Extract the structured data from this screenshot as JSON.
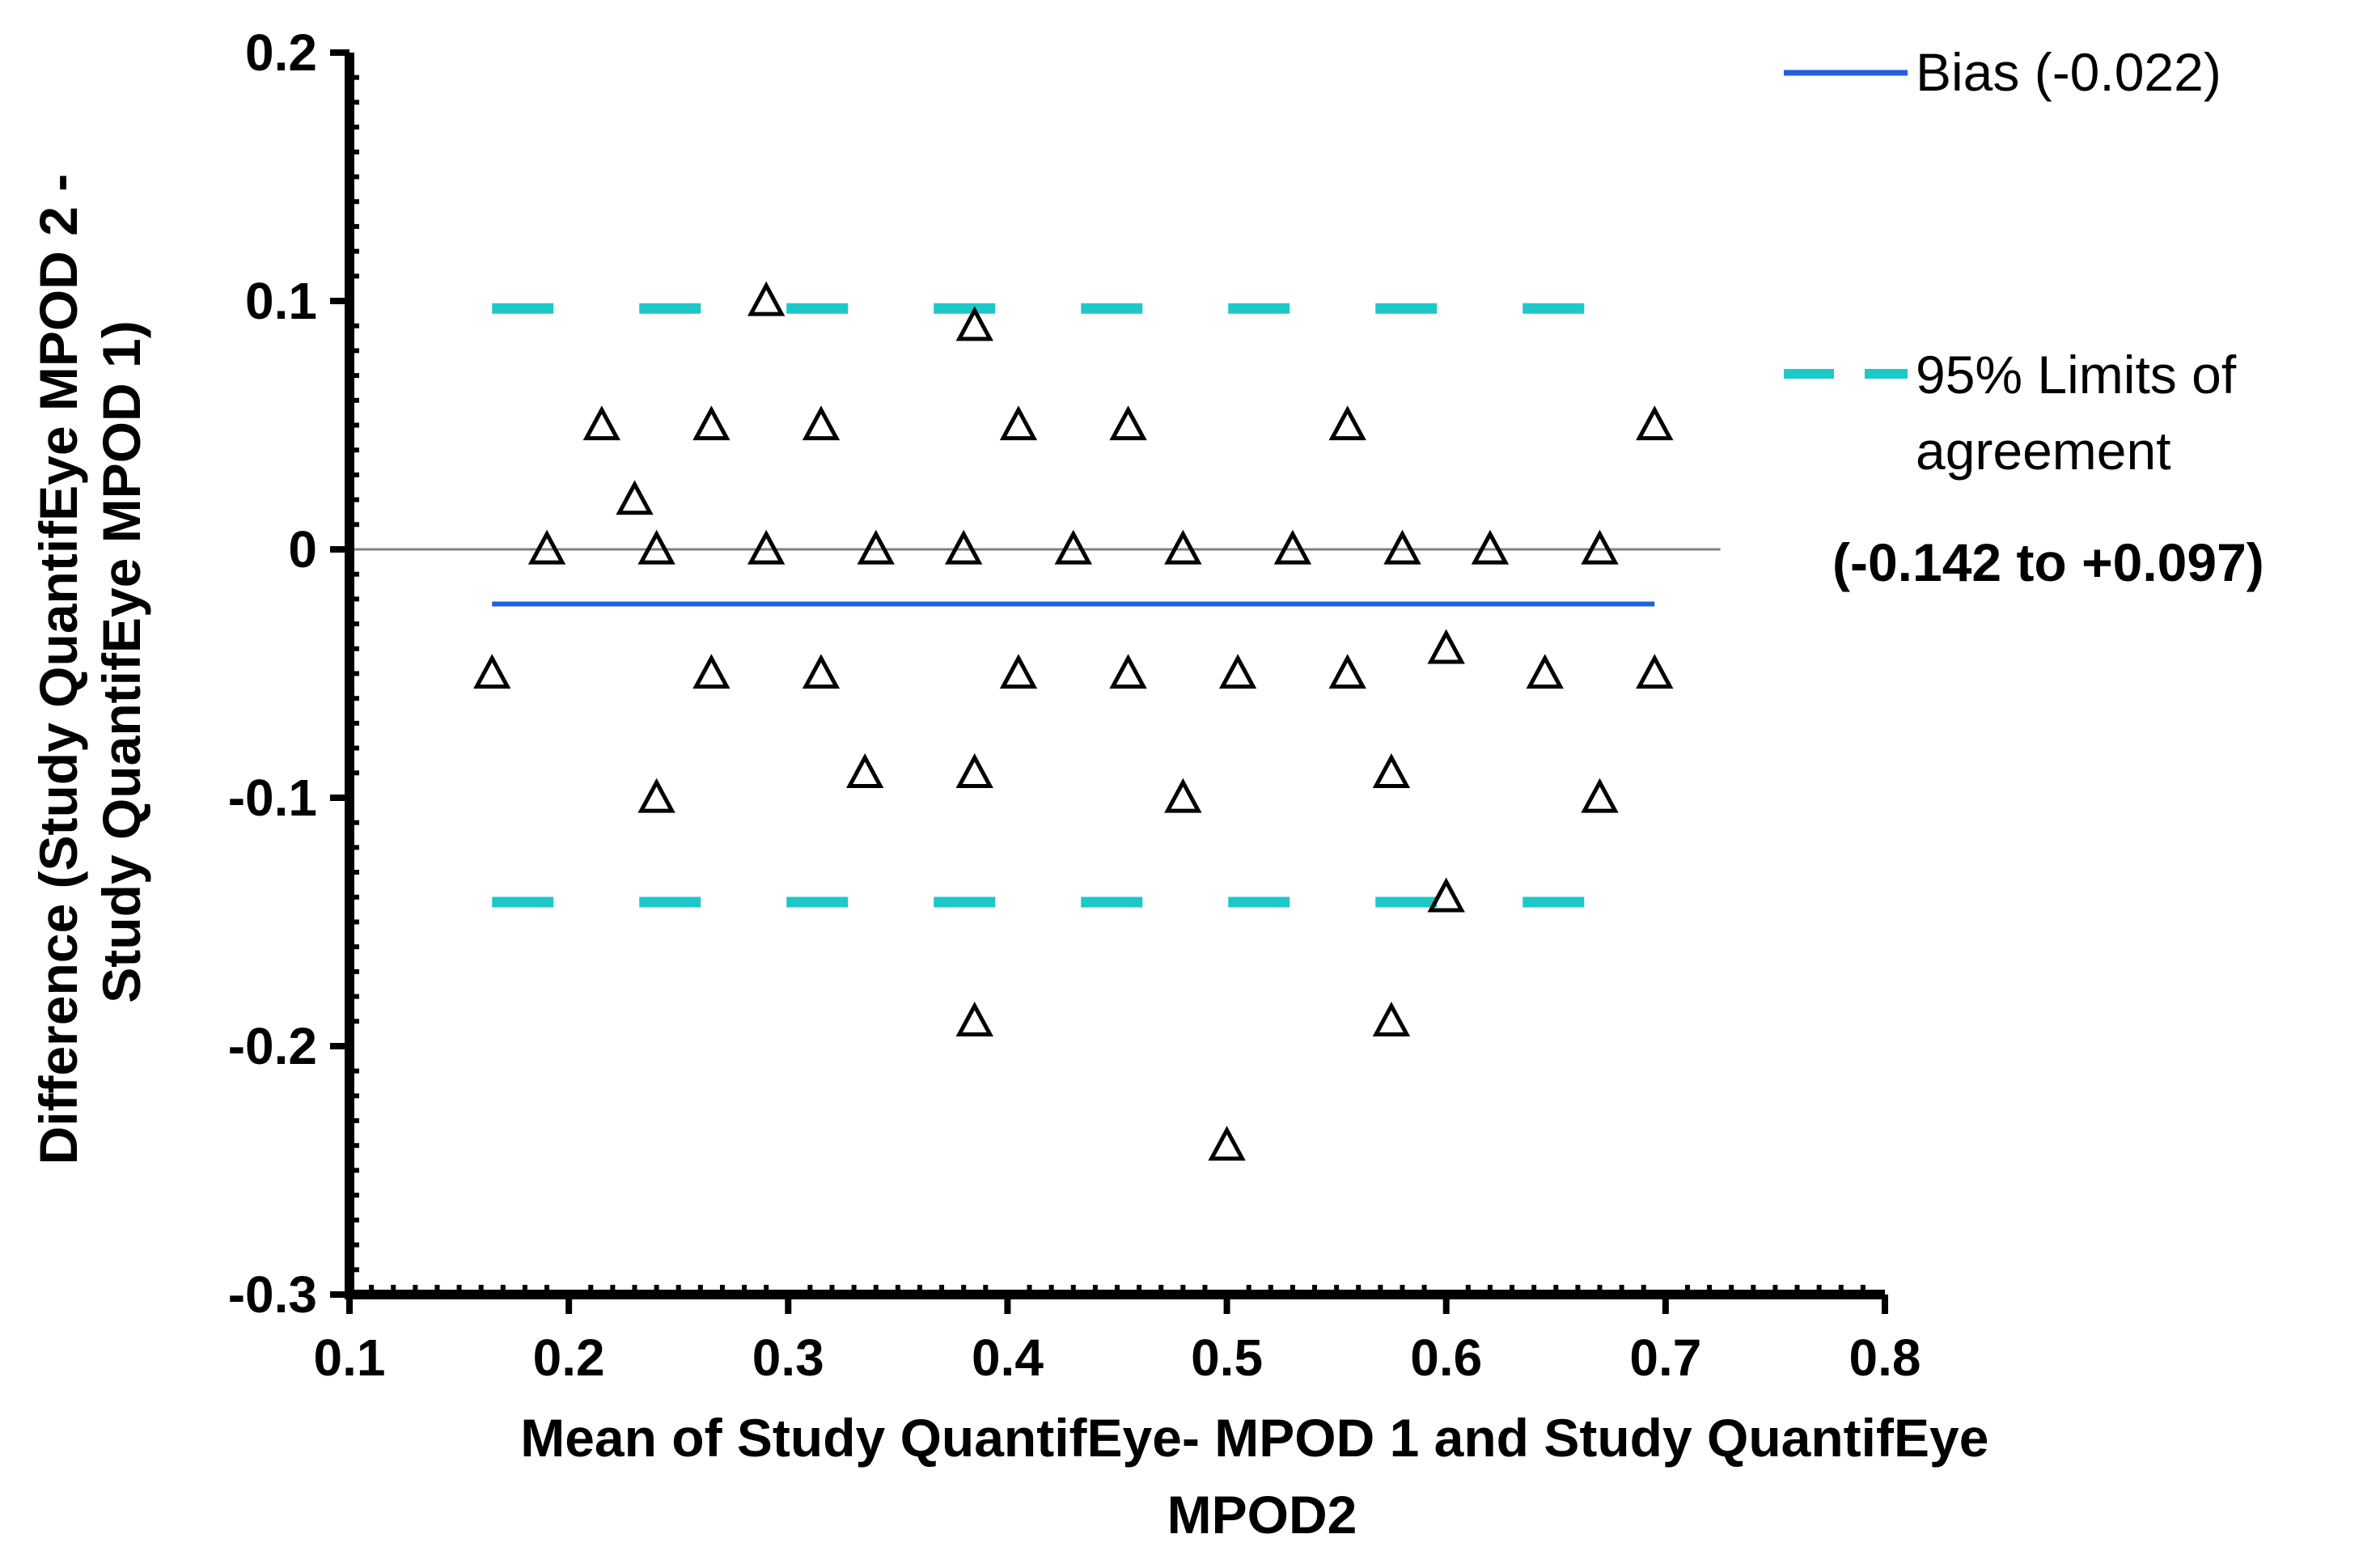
{
  "chart_data": {
    "type": "scatter",
    "title": "",
    "xlabel_lines": [
      "Mean of Study QuantifEye- MPOD 1 and Study QuantifEye",
      "MPOD2"
    ],
    "ylabel_lines": [
      "Difference (Study QuantifEye MPOD 2 -",
      "Study QuantifEye MPOD 1)"
    ],
    "xlim": [
      0.1,
      0.8
    ],
    "ylim": [
      -0.3,
      0.2
    ],
    "x_ticks": [
      0.1,
      0.2,
      0.3,
      0.4,
      0.5,
      0.6,
      0.7,
      0.8
    ],
    "x_tick_labels": [
      "0.1",
      "0.2",
      "0.3",
      "0.4",
      "0.5",
      "0.6",
      "0.7",
      "0.8"
    ],
    "y_ticks": [
      0.2,
      0.1,
      0,
      -0.1,
      -0.2,
      -0.3
    ],
    "y_tick_labels": [
      "0.2",
      "0.1",
      "0",
      "-0.1",
      "-0.2",
      "-0.3"
    ],
    "marker": "open-triangle",
    "points": [
      {
        "x": 0.165,
        "y": -0.05
      },
      {
        "x": 0.19,
        "y": 0.0
      },
      {
        "x": 0.215,
        "y": 0.05
      },
      {
        "x": 0.23,
        "y": 0.02
      },
      {
        "x": 0.24,
        "y": 0.0
      },
      {
        "x": 0.24,
        "y": -0.1
      },
      {
        "x": 0.265,
        "y": 0.05
      },
      {
        "x": 0.265,
        "y": -0.05
      },
      {
        "x": 0.29,
        "y": 0.1
      },
      {
        "x": 0.29,
        "y": 0.0
      },
      {
        "x": 0.315,
        "y": 0.05
      },
      {
        "x": 0.315,
        "y": -0.05
      },
      {
        "x": 0.335,
        "y": -0.09
      },
      {
        "x": 0.34,
        "y": 0.0
      },
      {
        "x": 0.38,
        "y": 0.0
      },
      {
        "x": 0.385,
        "y": 0.09
      },
      {
        "x": 0.385,
        "y": -0.09
      },
      {
        "x": 0.385,
        "y": -0.19
      },
      {
        "x": 0.405,
        "y": 0.05
      },
      {
        "x": 0.405,
        "y": -0.05
      },
      {
        "x": 0.43,
        "y": 0.0
      },
      {
        "x": 0.455,
        "y": 0.05
      },
      {
        "x": 0.455,
        "y": -0.05
      },
      {
        "x": 0.48,
        "y": 0.0
      },
      {
        "x": 0.48,
        "y": -0.1
      },
      {
        "x": 0.5,
        "y": -0.24
      },
      {
        "x": 0.505,
        "y": -0.05
      },
      {
        "x": 0.53,
        "y": 0.0
      },
      {
        "x": 0.555,
        "y": 0.05
      },
      {
        "x": 0.555,
        "y": -0.05
      },
      {
        "x": 0.575,
        "y": -0.09
      },
      {
        "x": 0.575,
        "y": -0.19
      },
      {
        "x": 0.58,
        "y": 0.0
      },
      {
        "x": 0.6,
        "y": -0.04
      },
      {
        "x": 0.6,
        "y": -0.14
      },
      {
        "x": 0.62,
        "y": 0.0
      },
      {
        "x": 0.645,
        "y": -0.05
      },
      {
        "x": 0.67,
        "y": 0.0
      },
      {
        "x": 0.67,
        "y": -0.1
      },
      {
        "x": 0.695,
        "y": 0.05
      },
      {
        "x": 0.695,
        "y": -0.05
      }
    ],
    "reference_lines": [
      {
        "name": "zero",
        "y": 0,
        "x_from": 0.1,
        "x_to": 0.725,
        "color": "#808080",
        "style": "solid"
      },
      {
        "name": "bias",
        "y": -0.022,
        "x_from": 0.165,
        "x_to": 0.695,
        "color": "#1f5fe0",
        "style": "solid"
      },
      {
        "name": "upper-loa",
        "y": 0.097,
        "x_from": 0.165,
        "x_to": 0.685,
        "color": "#1ec8c8",
        "style": "dashed"
      },
      {
        "name": "lower-loa",
        "y": -0.142,
        "x_from": 0.165,
        "x_to": 0.685,
        "color": "#1ec8c8",
        "style": "dashed"
      }
    ],
    "legend": {
      "placement": "top-right",
      "entries": [
        {
          "label": "Bias (-0.022)",
          "color": "#1f5fe0",
          "style": "solid"
        },
        {
          "label_lines": [
            "95% Limits of",
            "agreement"
          ],
          "color": "#1ec8c8",
          "style": "dashed"
        }
      ],
      "range_label": "(-0.142 to +0.097)"
    },
    "bias": -0.022,
    "limits_of_agreement": [
      -0.142,
      0.097
    ]
  }
}
